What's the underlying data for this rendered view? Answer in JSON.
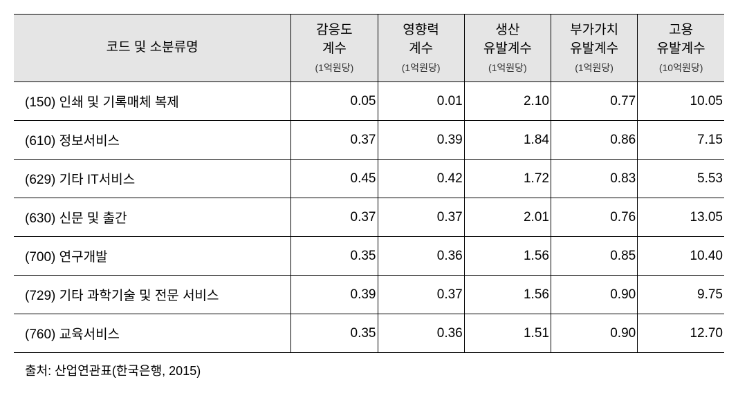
{
  "table": {
    "columns": [
      {
        "main": "코드 및 소분류명",
        "sub": ""
      },
      {
        "main": "감응도\n계수",
        "sub": "(1억원당)"
      },
      {
        "main": "영향력\n계수",
        "sub": "(1억원당)"
      },
      {
        "main": "생산\n유발계수",
        "sub": "(1억원당)"
      },
      {
        "main": "부가가치\n유발계수",
        "sub": "(1억원당)"
      },
      {
        "main": "고용\n유발계수",
        "sub": "(10억원당)"
      }
    ],
    "rows": [
      {
        "label": "(150) 인쇄 및 기록매체 복제",
        "values": [
          "0.05",
          "0.01",
          "2.10",
          "0.77",
          "10.05"
        ]
      },
      {
        "label": "(610) 정보서비스",
        "values": [
          "0.37",
          "0.39",
          "1.84",
          "0.86",
          "7.15"
        ]
      },
      {
        "label": "(629) 기타 IT서비스",
        "values": [
          "0.45",
          "0.42",
          "1.72",
          "0.83",
          "5.53"
        ]
      },
      {
        "label": "(630) 신문 및 출간",
        "values": [
          "0.37",
          "0.37",
          "2.01",
          "0.76",
          "13.05"
        ]
      },
      {
        "label": "(700) 연구개발",
        "values": [
          "0.35",
          "0.36",
          "1.56",
          "0.85",
          "10.40"
        ]
      },
      {
        "label": "(729) 기타 과학기술 및 전문 서비스",
        "values": [
          "0.39",
          "0.37",
          "1.56",
          "0.90",
          "9.75"
        ]
      },
      {
        "label": "(760) 교육서비스",
        "values": [
          "0.35",
          "0.36",
          "1.51",
          "0.90",
          "12.70"
        ]
      }
    ]
  },
  "source": "출처: 산업연관표(한국은행, 2015)"
}
